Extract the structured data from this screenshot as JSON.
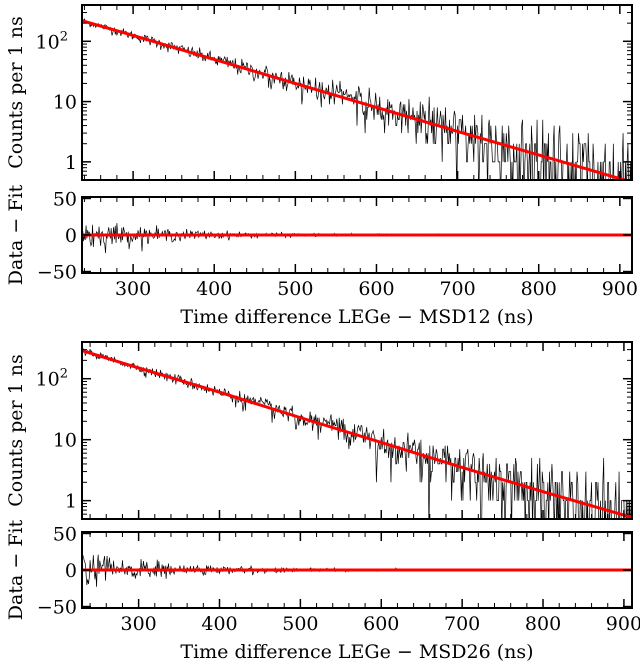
{
  "chart_data": [
    {
      "type": "line",
      "panel": "top-counts",
      "xlabel": "",
      "ylabel": "Counts per 1 ns",
      "yscale": "log",
      "xlim": [
        237,
        915
      ],
      "ylim": [
        0.5,
        400
      ],
      "y_ticks": [
        {
          "v": 1,
          "label": "1"
        },
        {
          "v": 10,
          "label": "10"
        },
        {
          "v": 100,
          "label": "10",
          "sup": "2"
        }
      ],
      "series": [
        {
          "kind": "data",
          "color": "#000000",
          "start": 237,
          "end": 915,
          "n0": 220,
          "tau": 111,
          "floor_count": 1
        },
        {
          "kind": "fit",
          "color": "#ff0000",
          "x": [
            237,
            300,
            400,
            500,
            600,
            700,
            800,
            915
          ],
          "y": [
            220,
            125,
            50,
            20,
            8,
            3.2,
            1.3,
            0.46
          ]
        }
      ]
    },
    {
      "type": "line",
      "panel": "top-residuals",
      "xlabel": "Time difference LEGe − MSD12 (ns)",
      "ylabel": "Data − Fit",
      "xlim": [
        237,
        915
      ],
      "ylim": [
        -52,
        52
      ],
      "x_ticks": [
        300,
        400,
        500,
        600,
        700,
        800,
        900
      ],
      "y_ticks": [
        {
          "v": 50,
          "label": "50"
        },
        {
          "v": 0,
          "label": "0"
        },
        {
          "v": -50,
          "label": "−50"
        }
      ],
      "series": [
        {
          "kind": "residual",
          "color": "#000000",
          "start": 237,
          "end": 915,
          "amp_start": 20,
          "amp_tau": 110
        },
        {
          "kind": "fit",
          "color": "#ff0000",
          "x": [
            237,
            915
          ],
          "y": [
            0,
            0
          ]
        }
      ]
    },
    {
      "type": "line",
      "panel": "bottom-counts",
      "xlabel": "",
      "ylabel": "Counts per 1 ns",
      "yscale": "log",
      "xlim": [
        230,
        910
      ],
      "ylim": [
        0.5,
        400
      ],
      "y_ticks": [
        {
          "v": 1,
          "label": "1"
        },
        {
          "v": 10,
          "label": "10"
        },
        {
          "v": 100,
          "label": "10",
          "sup": "2"
        }
      ],
      "series": [
        {
          "kind": "data",
          "color": "#000000",
          "start": 230,
          "end": 910,
          "n0": 290,
          "tau": 108,
          "floor_count": 1
        },
        {
          "kind": "fit",
          "color": "#ff0000",
          "x": [
            230,
            300,
            400,
            500,
            600,
            700,
            800,
            910
          ],
          "y": [
            290,
            150,
            60,
            23,
            9,
            3.5,
            1.4,
            0.53
          ]
        }
      ]
    },
    {
      "type": "line",
      "panel": "bottom-residuals",
      "xlabel": "Time difference LEGe − MSD26 (ns)",
      "ylabel": "Data − Fit",
      "xlim": [
        230,
        910
      ],
      "ylim": [
        -52,
        52
      ],
      "x_ticks": [
        300,
        400,
        500,
        600,
        700,
        800,
        900
      ],
      "y_ticks": [
        {
          "v": 50,
          "label": "50"
        },
        {
          "v": 0,
          "label": "0"
        },
        {
          "v": -50,
          "label": "−50"
        }
      ],
      "series": [
        {
          "kind": "residual",
          "color": "#000000",
          "start": 230,
          "end": 910,
          "amp_start": 24,
          "amp_tau": 110
        },
        {
          "kind": "fit",
          "color": "#ff0000",
          "x": [
            230,
            910
          ],
          "y": [
            0,
            0
          ]
        }
      ]
    }
  ]
}
